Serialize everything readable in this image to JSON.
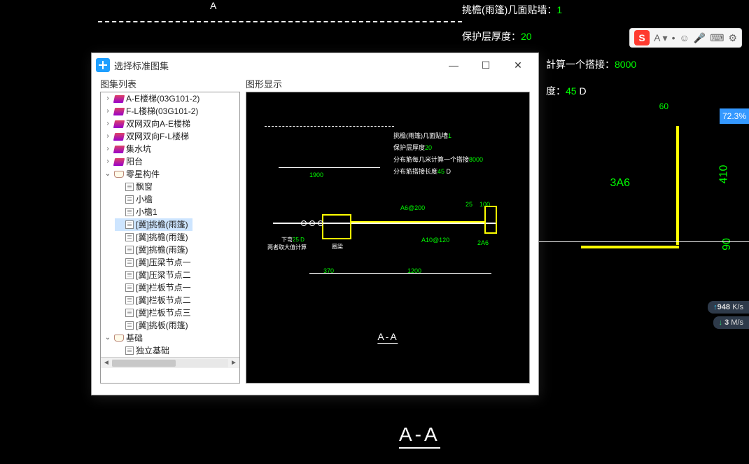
{
  "bg": {
    "sectionLetter": "A",
    "aa": "A-A",
    "ann1_label": "挑檐(雨篷)几面贴墙：",
    "ann1_val": "1",
    "ann2_label": "保护层厚度：",
    "ann2_val": "20",
    "ann3_label": "計算一个搭接：",
    "ann3_val": "8000",
    "ann4_label": "度：",
    "ann4_val": "45",
    "ann4_unit": " D",
    "dim60": "60",
    "dim410": "410",
    "dim90": "90",
    "lbl3a6": "3A6"
  },
  "topbar": {
    "marks": [
      "A ▾",
      "•",
      "☺",
      "🎤",
      "⌨",
      "⚙"
    ]
  },
  "pct": "72.3%",
  "net": {
    "up": "948",
    "up_unit": "K/s",
    "dn": "3",
    "dn_unit": "M/s"
  },
  "dialog": {
    "title": "选择标准图集",
    "treeTitle": "图集列表",
    "previewTitle": "图形显示",
    "tree": [
      {
        "d": 0,
        "t": "book",
        "caret": ">",
        "lbl": "A-E楼梯(03G101-2)"
      },
      {
        "d": 0,
        "t": "book",
        "caret": ">",
        "lbl": "F-L楼梯(03G101-2)"
      },
      {
        "d": 0,
        "t": "book",
        "caret": ">",
        "lbl": "双网双向A-E楼梯"
      },
      {
        "d": 0,
        "t": "book",
        "caret": ">",
        "lbl": "双网双向F-L楼梯"
      },
      {
        "d": 0,
        "t": "book",
        "caret": ">",
        "lbl": "集水坑"
      },
      {
        "d": 0,
        "t": "book",
        "caret": ">",
        "lbl": "阳台"
      },
      {
        "d": 0,
        "t": "openbook",
        "caret": "v",
        "lbl": "零星构件"
      },
      {
        "d": 1,
        "t": "page",
        "lbl": "飘窗"
      },
      {
        "d": 1,
        "t": "page",
        "lbl": "小檐"
      },
      {
        "d": 1,
        "t": "page",
        "lbl": "小檐1"
      },
      {
        "d": 1,
        "t": "page",
        "lbl": "[冀]挑檐(雨篷)",
        "selected": true
      },
      {
        "d": 1,
        "t": "page",
        "lbl": "[冀]挑檐(雨篷)"
      },
      {
        "d": 1,
        "t": "page",
        "lbl": "[冀]挑檐(雨篷)"
      },
      {
        "d": 1,
        "t": "page",
        "lbl": "[冀]压梁节点一"
      },
      {
        "d": 1,
        "t": "page",
        "lbl": "[冀]压梁节点二"
      },
      {
        "d": 1,
        "t": "page",
        "lbl": "[冀]栏板节点一"
      },
      {
        "d": 1,
        "t": "page",
        "lbl": "[冀]栏板节点二"
      },
      {
        "d": 1,
        "t": "page",
        "lbl": "[冀]栏板节点三"
      },
      {
        "d": 1,
        "t": "page",
        "lbl": "[冀]挑板(雨篷)"
      },
      {
        "d": 0,
        "t": "openbook",
        "caret": "v",
        "lbl": "基础"
      },
      {
        "d": 1,
        "t": "page",
        "lbl": "独立基础"
      }
    ],
    "preview": {
      "aa": "A-A",
      "n1_label": "挑檐(雨篷)几面贴墙",
      "n1_val": "1",
      "n2_label": "保护层厚度",
      "n2_val": "20",
      "n3_label": "分布筋每几米计算一个搭接",
      "n3_val": "8000",
      "n4_label": "分布筋搭接长度",
      "n4_val": "45",
      "n4_unit": " D",
      "dim1900": "1900",
      "dim370": "370",
      "dim1200": "1200",
      "dimA6200": "A6@200",
      "dimA10120": "A10@120",
      "dim2A6": "2A6",
      "dim25": "25",
      "dim100": "100",
      "note_dw": "下弯",
      "note_25d": "25 D",
      "note_max": "两者取大值计算",
      "note_ring": "圈梁"
    }
  }
}
